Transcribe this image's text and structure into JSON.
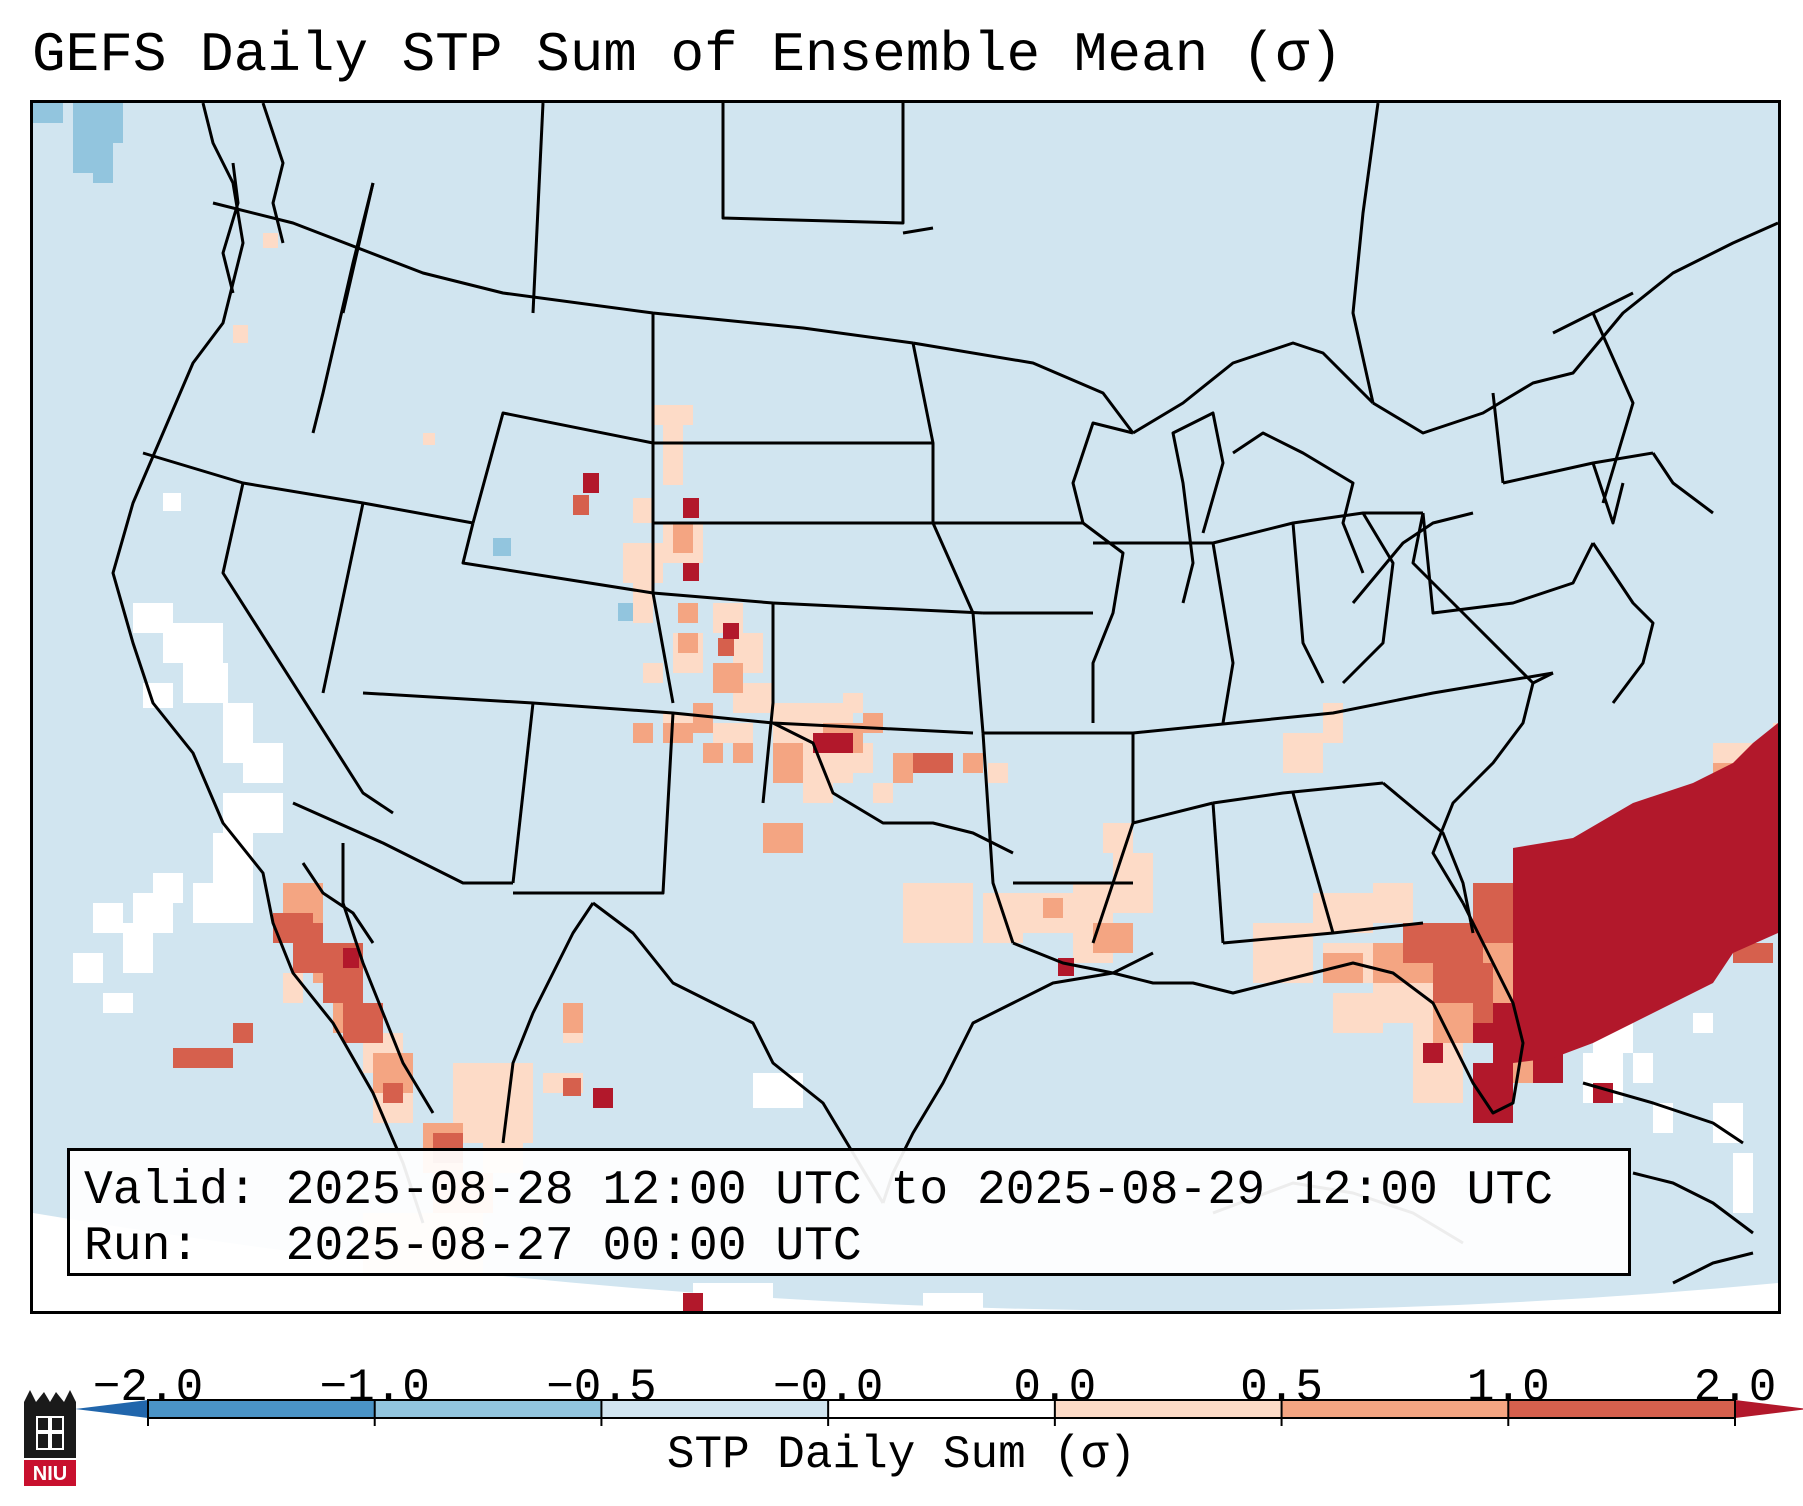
{
  "title": "GEFS Daily STP Sum of Ensemble Mean (σ)",
  "info": {
    "valid_label": "Valid:",
    "valid_range": "2025-08-28 12:00 UTC to 2025-08-29 12:00 UTC",
    "run_label": "Run:",
    "run_time": "2025-08-27 00:00 UTC"
  },
  "colorbar": {
    "label": "STP Daily Sum (σ)",
    "ticks": [
      "−2.0",
      "−1.0",
      "−0.5",
      "−0.0",
      "0.0",
      "0.5",
      "1.0",
      "2.0"
    ],
    "bins": [
      {
        "name": "-2 to -1",
        "color": "#4a93c6"
      },
      {
        "name": "-1 to -0.5",
        "color": "#92c5de"
      },
      {
        "name": "-0.5 to -0.0",
        "color": "#d1e5f0"
      },
      {
        "name": "-0.0 to 0.0",
        "color": "#ffffff"
      },
      {
        "name": "0.0 to 0.5",
        "color": "#fddbc7"
      },
      {
        "name": "0.5 to 1.0",
        "color": "#f4a582"
      },
      {
        "name": "1.0 to 2.0",
        "color": "#d6604d"
      }
    ],
    "under_color": "#2166ac",
    "over_color": "#b2182b"
  },
  "logo": {
    "text": "NIU",
    "color": "#c8102e"
  }
}
